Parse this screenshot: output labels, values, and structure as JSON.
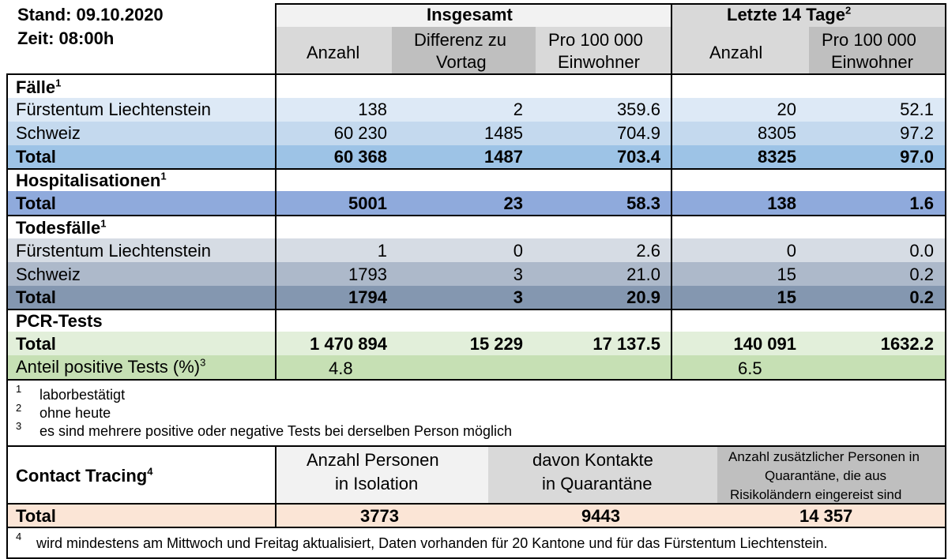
{
  "header": {
    "stand": "Stand: 09.10.2020",
    "zeit": "Zeit: 08:00h",
    "insgesamt": "Insgesamt",
    "letzte": "Letzte 14 Tage",
    "letzte_sup": "2",
    "anzahl": "Anzahl",
    "differenz_1": "Differenz zu",
    "differenz_2": "Vortag",
    "pro_1": "Pro 100 000",
    "pro_2": "Einwohner",
    "anzahl_b": "Anzahl",
    "pro_b_1": "Pro 100 000",
    "pro_b_2": "Einwohner"
  },
  "sections": {
    "faelle": {
      "title": "Fälle",
      "sup": "1"
    },
    "hosp": {
      "title": "Hospitalisationen",
      "sup": "1"
    },
    "tod": {
      "title": "Todesfälle",
      "sup": "1"
    },
    "pcr": {
      "title": "PCR-Tests"
    }
  },
  "rows": {
    "faelle_fl": {
      "label": "Fürstentum Liechtenstein",
      "v1": "138",
      "v2": "2",
      "v3": "359.6",
      "v4": "20",
      "v5": "52.1"
    },
    "faelle_ch": {
      "label": "Schweiz",
      "v1": "60 230",
      "v2": "1485",
      "v3": "704.9",
      "v4": "8305",
      "v5": "97.2"
    },
    "faelle_total": {
      "label": "Total",
      "v1": "60 368",
      "v2": "1487",
      "v3": "703.4",
      "v4": "8325",
      "v5": "97.0"
    },
    "hosp_total": {
      "label": "Total",
      "v1": "5001",
      "v2": "23",
      "v3": "58.3",
      "v4": "138",
      "v5": "1.6"
    },
    "tod_fl": {
      "label": "Fürstentum Liechtenstein",
      "v1": "1",
      "v2": "0",
      "v3": "2.6",
      "v4": "0",
      "v5": "0.0"
    },
    "tod_ch": {
      "label": "Schweiz",
      "v1": "1793",
      "v2": "3",
      "v3": "21.0",
      "v4": "15",
      "v5": "0.2"
    },
    "tod_total": {
      "label": "Total",
      "v1": "1794",
      "v2": "3",
      "v3": "20.9",
      "v4": "15",
      "v5": "0.2"
    },
    "pcr_total": {
      "label": "Total",
      "v1": "1 470 894",
      "v2": "15 229",
      "v3": "17 137.5",
      "v4": "140 091",
      "v5": "1632.2"
    },
    "pcr_anteil": {
      "label": "Anteil positive Tests (%)",
      "sup": "3",
      "v1": "4.8",
      "v4": "6.5"
    }
  },
  "footnotes": [
    {
      "num": "1",
      "text": "laborbestätigt"
    },
    {
      "num": "2",
      "text": "ohne heute"
    },
    {
      "num": "3",
      "text": "es sind mehrere positive oder negative Tests bei derselben Person möglich"
    }
  ],
  "contact": {
    "title": "Contact Tracing",
    "sup": "4",
    "col1_1": "Anzahl Personen",
    "col1_2": "in Isolation",
    "col2_1": "davon Kontakte",
    "col2_2": "in Quarantäne",
    "col3_1": "Anzahl zusätzlicher Personen in",
    "col3_2": "Quarantäne, die aus",
    "col3_3": "Risikoländern eingereist sind",
    "total_label": "Total",
    "total_1": "3773",
    "total_2": "9443",
    "total_3": "14 357",
    "footnote_num": "4",
    "footnote": "wird mindestens am Mittwoch und Freitag aktualisiert, Daten vorhanden für 20 Kantone und für das Fürstentum Liechtenstein."
  },
  "colors": {
    "faelle_fl": "#dde9f6",
    "faelle_ch": "#c4d9ee",
    "faelle_total": "#9dc3e6",
    "hosp_total": "#8faadc",
    "tod_fl": "#d6dce4",
    "tod_ch": "#adb9ca",
    "tod_total": "#8497b0",
    "pcr_total": "#e2efda",
    "pcr_anteil": "#c6e0b4",
    "contact_total": "#fbe5d6",
    "hdr_light": "#f2f2f2",
    "hdr_mid": "#d9d9d9",
    "hdr_dark": "#bfbfbf"
  }
}
